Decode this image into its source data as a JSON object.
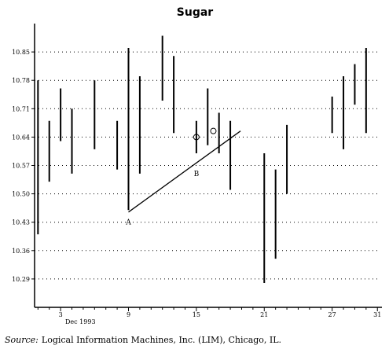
{
  "chart_data": {
    "type": "bar",
    "subtype": "high-low",
    "title": "Sugar",
    "xlabel": "",
    "ylabel": "",
    "x_tick_labels": [
      "3",
      "9",
      "15",
      "21",
      "27",
      "31"
    ],
    "x_sublabel": "Dec 1993",
    "y_tick_labels": [
      "10.85",
      "10.78",
      "10.71",
      "10.64",
      "10.57",
      "10.50",
      "10.43",
      "10.36",
      "10.29"
    ],
    "ylim": [
      10.22,
      10.92
    ],
    "xlim": [
      0.7,
      31.4
    ],
    "grid": "horizontal-dotted",
    "series": [
      {
        "values": [
          {
            "day": 1,
            "high": 10.78,
            "low": 10.4
          },
          {
            "day": 2,
            "high": 10.68,
            "low": 10.53
          },
          {
            "day": 3,
            "high": 10.76,
            "low": 10.63
          },
          {
            "day": 4,
            "high": 10.71,
            "low": 10.55
          },
          {
            "day": 6,
            "high": 10.78,
            "low": 10.61
          },
          {
            "day": 8,
            "high": 10.68,
            "low": 10.56
          },
          {
            "day": 9,
            "high": 10.86,
            "low": 10.46
          },
          {
            "day": 10,
            "high": 10.79,
            "low": 10.55
          },
          {
            "day": 12,
            "high": 10.89,
            "low": 10.73
          },
          {
            "day": 13,
            "high": 10.84,
            "low": 10.65
          },
          {
            "day": 15,
            "high": 10.68,
            "low": 10.6
          },
          {
            "day": 16,
            "high": 10.76,
            "low": 10.62
          },
          {
            "day": 17,
            "high": 10.7,
            "low": 10.6
          },
          {
            "day": 18,
            "high": 10.68,
            "low": 10.51
          },
          {
            "day": 21,
            "high": 10.6,
            "low": 10.28
          },
          {
            "day": 22,
            "high": 10.56,
            "low": 10.34
          },
          {
            "day": 23,
            "high": 10.67,
            "low": 10.5
          },
          {
            "day": 27,
            "high": 10.74,
            "low": 10.65
          },
          {
            "day": 28,
            "high": 10.79,
            "low": 10.61
          },
          {
            "day": 29,
            "high": 10.82,
            "low": 10.72
          },
          {
            "day": 30,
            "high": 10.86,
            "low": 10.65
          }
        ]
      }
    ],
    "trendline": {
      "from": {
        "day": 9,
        "value": 10.455
      },
      "to": {
        "day": 18.9,
        "value": 10.655
      }
    },
    "annotations": [
      {
        "label": "A",
        "day": 9,
        "value": 10.43
      },
      {
        "label": "B",
        "day": 15,
        "value": 10.55
      }
    ],
    "markers": [
      {
        "day": 15,
        "value": 10.64
      },
      {
        "day": 16.5,
        "value": 10.655
      }
    ]
  },
  "source": {
    "label": "Source:",
    "text": "Logical Information Machines, Inc. (LIM), Chicago, IL."
  }
}
